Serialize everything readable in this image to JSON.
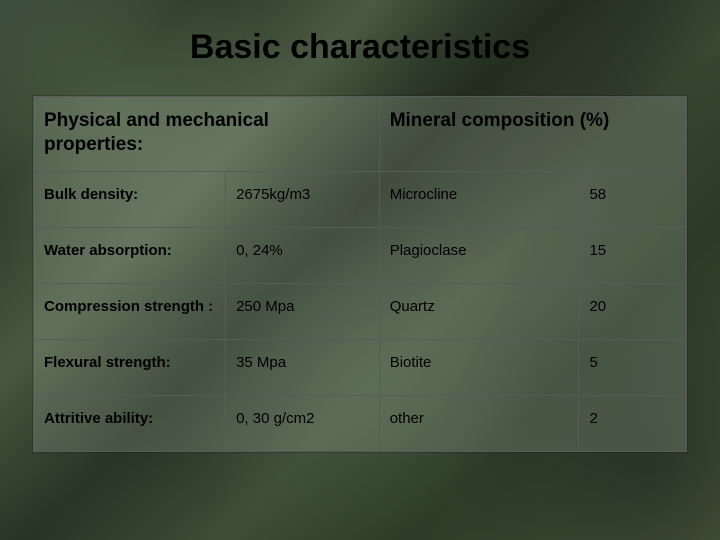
{
  "title": "Basic characteristics",
  "headers": {
    "left": "Physical and mechanical properties:",
    "right": "Mineral composition (%)"
  },
  "rows": [
    {
      "prop": "Bulk density:",
      "val": "2675kg/m3",
      "mineral": "Microcline",
      "pct": "58"
    },
    {
      "prop": "Water absorption:",
      "val": "0, 24%",
      "mineral": "Plagioclase",
      "pct": "15"
    },
    {
      "prop": "Compression strength :",
      "val": "250 Mpa",
      "mineral": "Quartz",
      "pct": "20"
    },
    {
      "prop": "Flexural strength:",
      "val": "35 Mpa",
      "mineral": "Biotite",
      "pct": "5"
    },
    {
      "prop": "Attritive ability:",
      "val": "0, 30 g/cm2",
      "mineral": "other",
      "pct": "2"
    }
  ]
}
